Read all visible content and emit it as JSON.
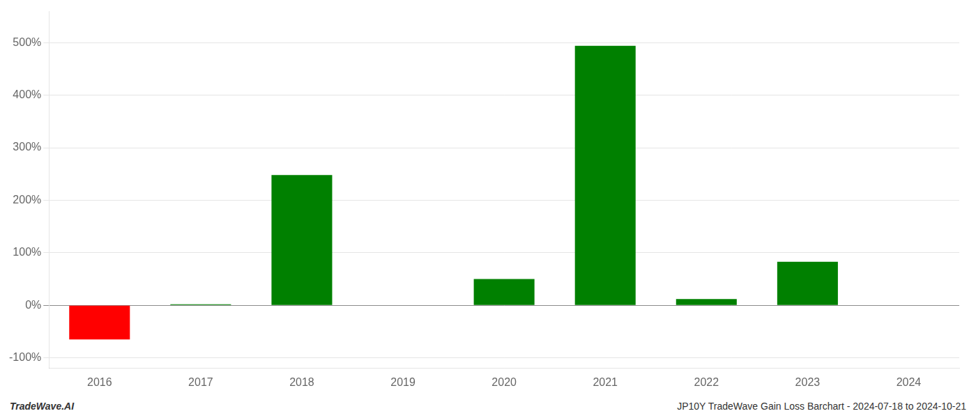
{
  "chart_data": {
    "type": "bar",
    "categories": [
      "2016",
      "2017",
      "2018",
      "2019",
      "2020",
      "2021",
      "2022",
      "2023",
      "2024"
    ],
    "values": [
      -65,
      2,
      248,
      0,
      50,
      494,
      12,
      83,
      0
    ],
    "colors": [
      "#ff0000",
      "#008000",
      "#008000",
      "#008000",
      "#008000",
      "#008000",
      "#008000",
      "#008000",
      "#008000"
    ],
    "ylim": [
      -120,
      560
    ],
    "yticks": [
      {
        "value": -100,
        "label": "-100%"
      },
      {
        "value": 0,
        "label": "0%"
      },
      {
        "value": 100,
        "label": "100%"
      },
      {
        "value": 200,
        "label": "200%"
      },
      {
        "value": 300,
        "label": "300%"
      },
      {
        "value": 400,
        "label": "400%"
      },
      {
        "value": 500,
        "label": "500%"
      }
    ],
    "grid": "y",
    "annotations": [
      "TradeWave.AI",
      "JP10Y TradeWave Gain Loss Barchart - 2024-07-18 to 2024-10-21"
    ]
  }
}
